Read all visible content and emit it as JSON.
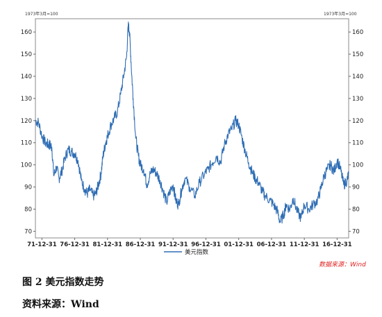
{
  "chart_data": {
    "type": "line",
    "unit_label_left": "1973年3月=100",
    "unit_label_right": "1973年3月=100",
    "y_ticks": [
      70,
      80,
      90,
      100,
      110,
      120,
      130,
      140,
      150,
      160
    ],
    "ylim": [
      67,
      166
    ],
    "x_ticks": [
      "71-12-31",
      "76-12-31",
      "81-12-31",
      "86-12-31",
      "91-12-31",
      "96-12-31",
      "01-12-31",
      "06-12-31",
      "11-12-31",
      "16-12-31"
    ],
    "x_tick_years": [
      1971.99,
      1976.99,
      1981.99,
      1986.99,
      1991.99,
      1996.99,
      2001.99,
      2006.99,
      2011.99,
      2016.99
    ],
    "xlim": [
      1971.0,
      2018.75
    ],
    "grid": false,
    "legend_position": "bottom-center",
    "source_note": "数据来源：Wind",
    "series": [
      {
        "name": "美元指数",
        "color": "#2e6db4",
        "x": [
          1971.0,
          1971.5,
          1972.0,
          1972.5,
          1973.0,
          1973.2,
          1973.5,
          1973.8,
          1974.2,
          1974.6,
          1975.0,
          1975.5,
          1976.0,
          1976.5,
          1977.0,
          1977.5,
          1978.0,
          1978.5,
          1978.9,
          1979.3,
          1979.8,
          1980.2,
          1980.6,
          1981.0,
          1981.3,
          1981.7,
          1982.0,
          1982.5,
          1983.0,
          1983.5,
          1984.0,
          1984.5,
          1984.9,
          1985.15,
          1985.35,
          1985.6,
          1985.9,
          1986.3,
          1986.7,
          1987.0,
          1987.5,
          1988.0,
          1988.5,
          1989.0,
          1989.5,
          1990.0,
          1990.5,
          1991.0,
          1991.5,
          1992.0,
          1992.4,
          1992.8,
          1993.3,
          1993.8,
          1994.5,
          1995.3,
          1996.0,
          1996.8,
          1997.3,
          1998.0,
          1998.6,
          1999.2,
          1999.8,
          2000.4,
          2000.9,
          2001.5,
          2002.0,
          2002.5,
          2003.0,
          2003.5,
          2004.0,
          2004.5,
          2005.0,
          2005.6,
          2006.0,
          2006.8,
          2007.3,
          2007.9,
          2008.3,
          2008.9,
          2009.2,
          2009.8,
          2010.3,
          2010.9,
          2011.5,
          2012.0,
          2012.7,
          2013.3,
          2014.0,
          2014.5,
          2015.0,
          2015.5,
          2016.0,
          2016.5,
          2017.0,
          2017.5,
          2018.0,
          2018.5,
          2018.75
        ],
        "values": [
          120,
          119,
          113,
          110,
          109,
          109,
          108,
          95,
          99,
          94,
          97,
          103,
          107,
          106,
          105,
          102,
          93,
          89,
          87,
          89,
          86,
          87,
          91,
          96,
          104,
          110,
          113,
          118,
          121,
          124,
          132,
          141,
          149,
          163,
          160,
          145,
          130,
          112,
          104,
          100,
          98,
          91,
          96,
          98,
          96,
          93,
          88,
          83,
          88,
          91,
          84,
          82,
          89,
          94,
          90,
          86,
          92,
          96,
          98,
          101,
          104,
          101,
          109,
          114,
          116,
          120,
          118,
          112,
          106,
          101,
          97,
          94,
          92,
          88,
          86,
          84,
          82,
          79,
          74,
          78,
          82,
          80,
          85,
          79,
          76,
          82,
          80,
          82,
          84,
          89,
          95,
          98,
          100,
          97,
          102,
          98,
          91,
          93,
          96
        ]
      }
    ]
  },
  "captions": {
    "figure_title": "图 2  美元指数走势",
    "source": "资料来源：Wind"
  }
}
